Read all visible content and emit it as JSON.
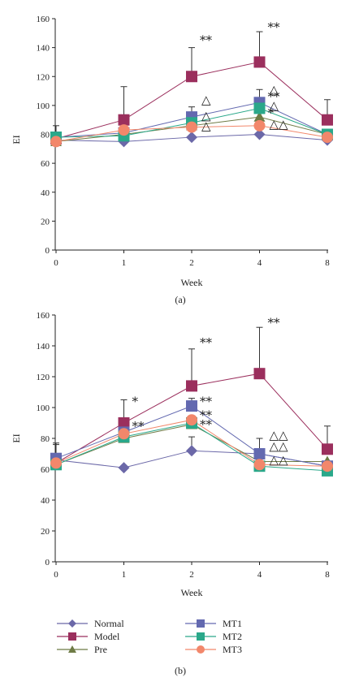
{
  "chart_data": [
    {
      "type": "line",
      "panel_label": "(a)",
      "xlabel": "Week",
      "ylabel": "EI",
      "categories": [
        "0",
        "1",
        "2",
        "4",
        "8"
      ],
      "ylim": [
        0,
        160
      ],
      "yticks": [
        0,
        20,
        40,
        60,
        80,
        100,
        120,
        140,
        160
      ],
      "grid": false,
      "series": [
        {
          "name": "Normal",
          "values": [
            76,
            75,
            78,
            80,
            76
          ],
          "color": "#6b68a8",
          "marker": "diamond",
          "errors": [
            0,
            0,
            0,
            0,
            0
          ]
        },
        {
          "name": "Model",
          "values": [
            77,
            90,
            120,
            130,
            90
          ],
          "color": "#9b2f5d",
          "marker": "square",
          "errors": [
            9,
            23,
            20,
            21,
            14
          ]
        },
        {
          "name": "Pre",
          "values": [
            75,
            80,
            86,
            92,
            80
          ],
          "color": "#6e7b45",
          "marker": "triangle",
          "errors": [
            0,
            0,
            0,
            0,
            0
          ]
        },
        {
          "name": "MT1",
          "values": [
            78,
            81,
            92,
            102,
            80
          ],
          "color": "#6369b0",
          "marker": "square",
          "errors": [
            0,
            0,
            7,
            9,
            0
          ]
        },
        {
          "name": "MT2",
          "values": [
            78,
            79,
            88,
            98,
            80
          ],
          "color": "#2aa88a",
          "marker": "square",
          "errors": [
            0,
            0,
            0,
            0,
            0
          ]
        },
        {
          "name": "MT3",
          "values": [
            75,
            83,
            85,
            86,
            78
          ],
          "color": "#f2876b",
          "marker": "circle",
          "errors": [
            0,
            0,
            0,
            0,
            0
          ]
        }
      ],
      "annotations": [
        {
          "text": "**",
          "x": "2",
          "y": 145
        },
        {
          "text": "**",
          "x": "4",
          "y": 154
        },
        {
          "text": "**",
          "x": "4",
          "y": 106
        },
        {
          "text": "*",
          "x": "4",
          "y": 95
        },
        {
          "text": "△",
          "x": "2",
          "y": 104
        },
        {
          "text": "△",
          "x": "2",
          "y": 93
        },
        {
          "text": "△",
          "x": "2",
          "y": 86
        },
        {
          "text": "△",
          "x": "4",
          "y": 111
        },
        {
          "text": "△",
          "x": "4",
          "y": 100
        },
        {
          "text": "△△",
          "x": "4",
          "y": 87
        }
      ]
    },
    {
      "type": "line",
      "panel_label": "(b)",
      "xlabel": "Week",
      "ylabel": "EI",
      "categories": [
        "0",
        "1",
        "2",
        "4",
        "8"
      ],
      "ylim": [
        0,
        160
      ],
      "yticks": [
        0,
        20,
        40,
        60,
        80,
        100,
        120,
        140,
        160
      ],
      "grid": false,
      "series": [
        {
          "name": "Normal",
          "values": [
            66,
            61,
            72,
            70,
            62
          ],
          "color": "#6b68a8",
          "marker": "diamond",
          "errors": [
            0,
            0,
            9,
            0,
            0
          ]
        },
        {
          "name": "Model",
          "values": [
            64,
            90,
            114,
            122,
            73
          ],
          "color": "#9b2f5d",
          "marker": "square",
          "errors": [
            13,
            15,
            24,
            30,
            15
          ]
        },
        {
          "name": "Pre",
          "values": [
            63,
            80,
            89,
            65,
            65
          ],
          "color": "#6e7b45",
          "marker": "triangle",
          "errors": [
            0,
            0,
            0,
            0,
            0
          ]
        },
        {
          "name": "MT1",
          "values": [
            67,
            84,
            101,
            70,
            62
          ],
          "color": "#6369b0",
          "marker": "square",
          "errors": [
            9,
            0,
            5,
            10,
            0
          ]
        },
        {
          "name": "MT2",
          "values": [
            63,
            81,
            90,
            62,
            59
          ],
          "color": "#2aa88a",
          "marker": "square",
          "errors": [
            0,
            0,
            0,
            0,
            0
          ]
        },
        {
          "name": "MT3",
          "values": [
            64,
            83,
            92,
            63,
            62
          ],
          "color": "#f2876b",
          "marker": "circle",
          "errors": [
            0,
            0,
            0,
            0,
            0
          ]
        }
      ],
      "annotations": [
        {
          "text": "*",
          "x": "1",
          "y": 104
        },
        {
          "text": "**",
          "x": "1",
          "y": 88
        },
        {
          "text": "**",
          "x": "2",
          "y": 142
        },
        {
          "text": "**",
          "x": "2",
          "y": 104
        },
        {
          "text": "**",
          "x": "2",
          "y": 95
        },
        {
          "text": "**",
          "x": "2",
          "y": 89
        },
        {
          "text": "**",
          "x": "4",
          "y": 155
        },
        {
          "text": "△△",
          "x": "4",
          "y": 82
        },
        {
          "text": "△△",
          "x": "4",
          "y": 75
        },
        {
          "text": "△△",
          "x": "4",
          "y": 66
        }
      ]
    }
  ],
  "legend": {
    "items": [
      {
        "name": "Normal",
        "color": "#6b68a8",
        "marker": "diamond"
      },
      {
        "name": "Model",
        "color": "#9b2f5d",
        "marker": "square"
      },
      {
        "name": "Pre",
        "color": "#6e7b45",
        "marker": "triangle"
      },
      {
        "name": "MT1",
        "color": "#6369b0",
        "marker": "square"
      },
      {
        "name": "MT2",
        "color": "#2aa88a",
        "marker": "square"
      },
      {
        "name": "MT3",
        "color": "#f2876b",
        "marker": "circle"
      }
    ]
  }
}
